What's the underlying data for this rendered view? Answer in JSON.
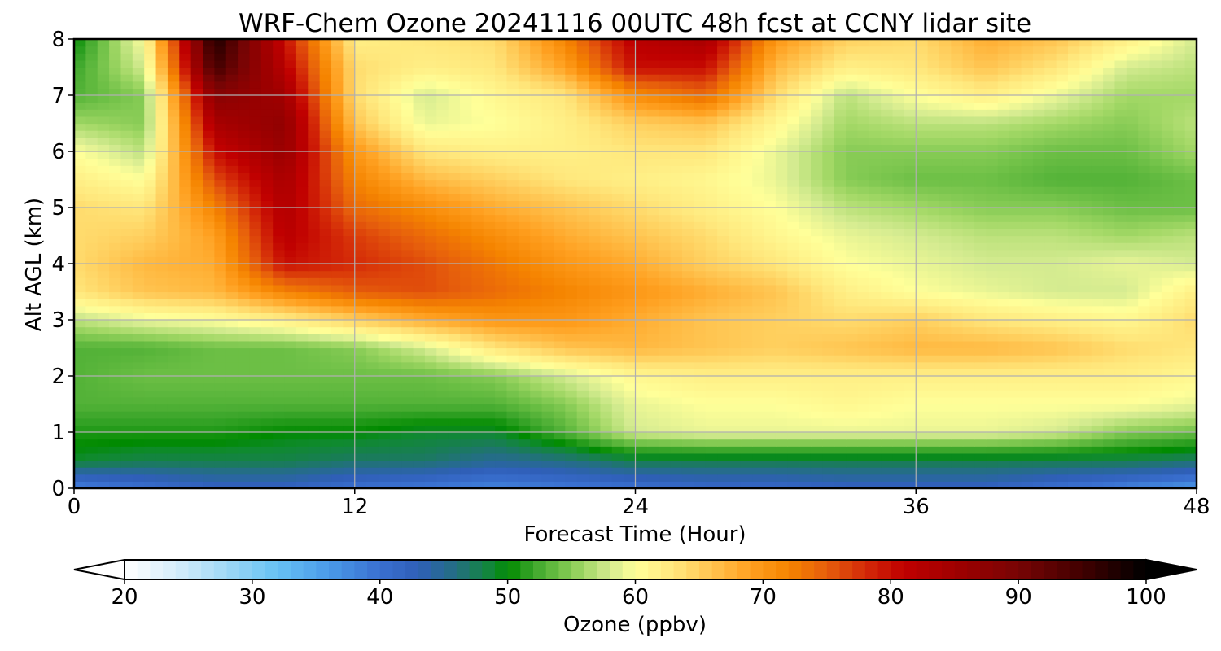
{
  "chart_data": {
    "type": "heatmap",
    "title": "WRF-Chem Ozone  20241116 00UTC 48h fcst at CCNY lidar site",
    "xlabel": "Forecast Time (Hour)",
    "ylabel": "Alt AGL (km)",
    "xlim": [
      0,
      48
    ],
    "ylim": [
      0,
      8
    ],
    "xticks": [
      "0",
      "12",
      "24",
      "36",
      "48"
    ],
    "yticks": [
      "0",
      "1",
      "2",
      "3",
      "4",
      "5",
      "6",
      "7",
      "8"
    ],
    "grid": true,
    "x": [
      0,
      3,
      6,
      9,
      12,
      15,
      18,
      21,
      24,
      27,
      30,
      33,
      36,
      39,
      42,
      45,
      48
    ],
    "y": [
      0,
      0.5,
      1,
      1.5,
      2,
      2.5,
      3,
      3.5,
      4,
      4.5,
      5,
      5.5,
      6,
      6.5,
      7,
      7.5,
      8
    ],
    "z": [
      [
        38,
        40,
        42,
        42,
        40,
        39,
        38,
        39,
        40,
        41,
        41,
        42,
        42,
        42,
        40,
        38,
        36
      ],
      [
        49,
        48,
        48,
        48,
        47,
        47,
        45,
        46,
        48,
        48,
        48,
        48,
        48,
        48,
        48,
        48,
        47
      ],
      [
        51,
        51,
        51,
        50,
        50,
        49,
        49,
        53,
        58,
        59,
        59,
        59,
        59,
        59,
        58,
        55,
        54
      ],
      [
        53,
        53,
        53,
        53,
        53,
        53,
        53,
        55,
        59,
        60,
        60,
        61,
        60,
        60,
        60,
        60,
        59
      ],
      [
        53,
        54,
        54,
        54,
        54,
        54,
        55,
        58,
        61,
        62,
        62,
        62,
        62,
        62,
        62,
        62,
        61
      ],
      [
        53,
        53,
        54,
        54,
        55,
        58,
        63,
        66,
        67,
        66,
        65,
        66,
        67,
        67,
        66,
        64,
        63
      ],
      [
        57,
        59,
        60,
        62,
        65,
        68,
        70,
        70,
        68,
        66,
        65,
        64,
        65,
        63,
        62,
        61,
        64
      ],
      [
        63,
        66,
        67,
        72,
        75,
        76,
        74,
        72,
        70,
        68,
        66,
        62,
        60,
        59,
        58,
        58,
        62
      ],
      [
        64,
        67,
        68,
        80,
        78,
        76,
        73,
        70,
        68,
        65,
        63,
        60,
        59,
        58,
        58,
        59,
        58
      ],
      [
        64,
        65,
        69,
        82,
        77,
        74,
        71,
        68,
        66,
        64,
        61,
        59,
        58,
        57,
        57,
        56,
        57
      ],
      [
        64,
        63,
        72,
        83,
        74,
        71,
        68,
        66,
        64,
        62,
        60,
        57,
        56,
        55,
        55,
        54,
        54
      ],
      [
        62,
        60,
        76,
        84,
        72,
        67,
        65,
        63,
        62,
        61,
        59,
        55,
        54,
        54,
        53,
        53,
        54
      ],
      [
        60,
        57,
        80,
        86,
        70,
        63,
        62,
        62,
        63,
        63,
        59,
        55,
        55,
        55,
        54,
        54,
        56
      ],
      [
        56,
        55,
        84,
        87,
        66,
        59,
        60,
        62,
        65,
        66,
        61,
        56,
        57,
        57,
        56,
        55,
        57
      ],
      [
        53,
        55,
        88,
        85,
        64,
        58,
        61,
        63,
        71,
        74,
        64,
        57,
        60,
        62,
        59,
        56,
        56
      ],
      [
        52,
        58,
        95,
        82,
        64,
        62,
        63,
        69,
        80,
        80,
        67,
        62,
        63,
        66,
        63,
        58,
        57
      ],
      [
        50,
        60,
        98,
        80,
        62,
        63,
        64,
        72,
        82,
        84,
        70,
        65,
        64,
        68,
        66,
        62,
        58
      ]
    ],
    "colorbar": {
      "label": "Ozone  (ppbv)",
      "min": 20,
      "max": 100,
      "ticks": [
        "20",
        "30",
        "40",
        "50",
        "60",
        "70",
        "80",
        "90",
        "100"
      ],
      "extend": "both"
    },
    "colormap": [
      {
        "v": 20,
        "c": "#ffffff"
      },
      {
        "v": 24,
        "c": "#d6eefa"
      },
      {
        "v": 28,
        "c": "#9fd8f6"
      },
      {
        "v": 32,
        "c": "#66c1f4"
      },
      {
        "v": 36,
        "c": "#4a9ae8"
      },
      {
        "v": 40,
        "c": "#3a70d0"
      },
      {
        "v": 43,
        "c": "#2f5fb8"
      },
      {
        "v": 46,
        "c": "#236f80"
      },
      {
        "v": 49,
        "c": "#0f8a2e"
      },
      {
        "v": 50,
        "c": "#008a00"
      },
      {
        "v": 52,
        "c": "#3aa52a"
      },
      {
        "v": 54,
        "c": "#6cbf45"
      },
      {
        "v": 56,
        "c": "#a3d866"
      },
      {
        "v": 58,
        "c": "#d4eb90"
      },
      {
        "v": 60,
        "c": "#ffff99"
      },
      {
        "v": 63,
        "c": "#ffe77c"
      },
      {
        "v": 66,
        "c": "#ffc450"
      },
      {
        "v": 69,
        "c": "#ffa020"
      },
      {
        "v": 72,
        "c": "#f58400"
      },
      {
        "v": 75,
        "c": "#e65e0c"
      },
      {
        "v": 78,
        "c": "#d42a08"
      },
      {
        "v": 81,
        "c": "#c00000"
      },
      {
        "v": 85,
        "c": "#a00000"
      },
      {
        "v": 90,
        "c": "#780404"
      },
      {
        "v": 95,
        "c": "#400000"
      },
      {
        "v": 100,
        "c": "#000000"
      }
    ]
  }
}
